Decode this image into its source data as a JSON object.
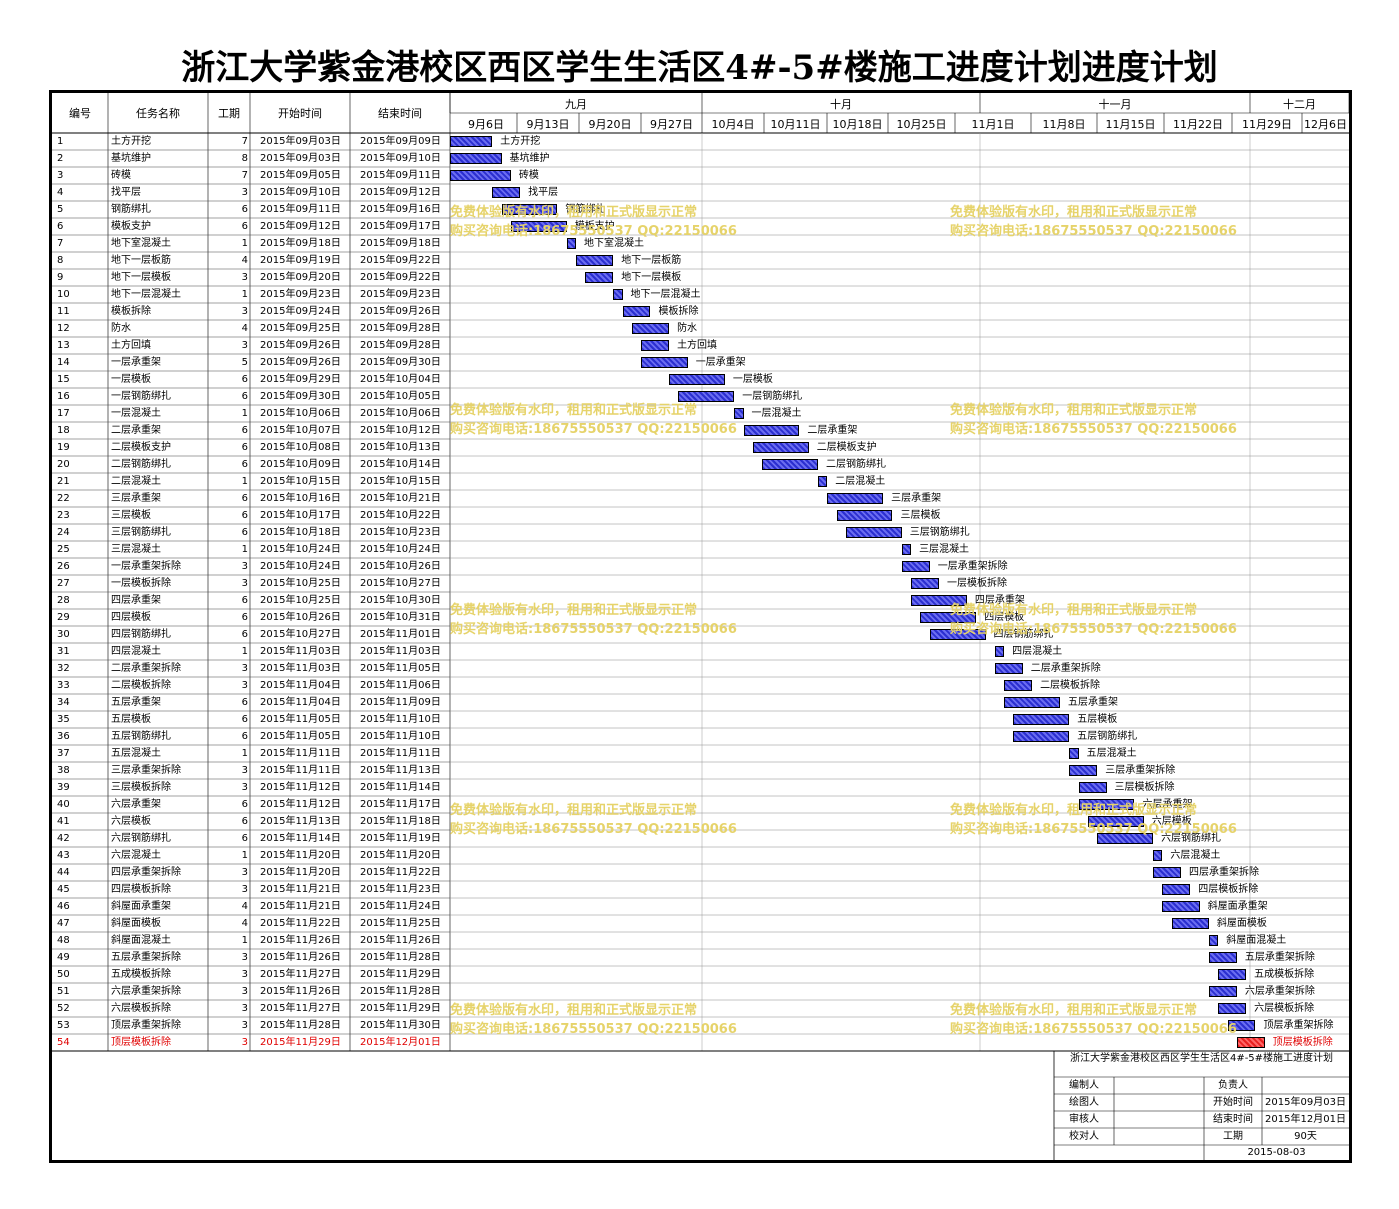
{
  "title": "浙江大学紫金港校区西区学生生活区4#-5#楼施工进度计划进度计划",
  "columns": {
    "id": "编号",
    "name": "任务名称",
    "dur": "工期",
    "start": "开始时间",
    "end": "结束时间"
  },
  "months": [
    "九月",
    "十月",
    "十一月",
    "十二月"
  ],
  "weeks": [
    "9月6日",
    "9月13日",
    "9月20日",
    "9月27日",
    "10月4日",
    "10月11日",
    "10月18日",
    "10月25日",
    "11月1日",
    "11月8日",
    "11月15日",
    "11月22日",
    "11月29日",
    "12月6日"
  ],
  "timeline": {
    "start": "2015-08-30",
    "end": "2015-12-12"
  },
  "tasks": [
    {
      "id": "1",
      "name": "土方开挖",
      "dur": "7",
      "start": "2015年09月03日",
      "end": "2015年09月09日",
      "s": "2015-09-03",
      "e": "2015-09-09"
    },
    {
      "id": "2",
      "name": "基坑维护",
      "dur": "8",
      "start": "2015年09月03日",
      "end": "2015年09月10日",
      "s": "2015-09-03",
      "e": "2015-09-10"
    },
    {
      "id": "3",
      "name": "砖模",
      "dur": "7",
      "start": "2015年09月05日",
      "end": "2015年09月11日",
      "s": "2015-09-05",
      "e": "2015-09-11"
    },
    {
      "id": "4",
      "name": "找平层",
      "dur": "3",
      "start": "2015年09月10日",
      "end": "2015年09月12日",
      "s": "2015-09-10",
      "e": "2015-09-12"
    },
    {
      "id": "5",
      "name": "钢筋绑扎",
      "dur": "6",
      "start": "2015年09月11日",
      "end": "2015年09月16日",
      "s": "2015-09-11",
      "e": "2015-09-16"
    },
    {
      "id": "6",
      "name": "模板支护",
      "dur": "6",
      "start": "2015年09月12日",
      "end": "2015年09月17日",
      "s": "2015-09-12",
      "e": "2015-09-17"
    },
    {
      "id": "7",
      "name": "地下室混凝土",
      "dur": "1",
      "start": "2015年09月18日",
      "end": "2015年09月18日",
      "s": "2015-09-18",
      "e": "2015-09-18"
    },
    {
      "id": "8",
      "name": "地下一层板筋",
      "dur": "4",
      "start": "2015年09月19日",
      "end": "2015年09月22日",
      "s": "2015-09-19",
      "e": "2015-09-22"
    },
    {
      "id": "9",
      "name": "地下一层模板",
      "dur": "3",
      "start": "2015年09月20日",
      "end": "2015年09月22日",
      "s": "2015-09-20",
      "e": "2015-09-22"
    },
    {
      "id": "10",
      "name": "地下一层混凝土",
      "dur": "1",
      "start": "2015年09月23日",
      "end": "2015年09月23日",
      "s": "2015-09-23",
      "e": "2015-09-23"
    },
    {
      "id": "11",
      "name": "模板拆除",
      "dur": "3",
      "start": "2015年09月24日",
      "end": "2015年09月26日",
      "s": "2015-09-24",
      "e": "2015-09-26"
    },
    {
      "id": "12",
      "name": "防水",
      "dur": "4",
      "start": "2015年09月25日",
      "end": "2015年09月28日",
      "s": "2015-09-25",
      "e": "2015-09-28"
    },
    {
      "id": "13",
      "name": "土方回填",
      "dur": "3",
      "start": "2015年09月26日",
      "end": "2015年09月28日",
      "s": "2015-09-26",
      "e": "2015-09-28"
    },
    {
      "id": "14",
      "name": "一层承重架",
      "dur": "5",
      "start": "2015年09月26日",
      "end": "2015年09月30日",
      "s": "2015-09-26",
      "e": "2015-09-30"
    },
    {
      "id": "15",
      "name": "一层模板",
      "dur": "6",
      "start": "2015年09月29日",
      "end": "2015年10月04日",
      "s": "2015-09-29",
      "e": "2015-10-04"
    },
    {
      "id": "16",
      "name": "一层钢筋绑扎",
      "dur": "6",
      "start": "2015年09月30日",
      "end": "2015年10月05日",
      "s": "2015-09-30",
      "e": "2015-10-05"
    },
    {
      "id": "17",
      "name": "一层混凝土",
      "dur": "1",
      "start": "2015年10月06日",
      "end": "2015年10月06日",
      "s": "2015-10-06",
      "e": "2015-10-06"
    },
    {
      "id": "18",
      "name": "二层承重架",
      "dur": "6",
      "start": "2015年10月07日",
      "end": "2015年10月12日",
      "s": "2015-10-07",
      "e": "2015-10-12"
    },
    {
      "id": "19",
      "name": "二层模板支护",
      "dur": "6",
      "start": "2015年10月08日",
      "end": "2015年10月13日",
      "s": "2015-10-08",
      "e": "2015-10-13"
    },
    {
      "id": "20",
      "name": "二层钢筋绑扎",
      "dur": "6",
      "start": "2015年10月09日",
      "end": "2015年10月14日",
      "s": "2015-10-09",
      "e": "2015-10-14"
    },
    {
      "id": "21",
      "name": "二层混凝土",
      "dur": "1",
      "start": "2015年10月15日",
      "end": "2015年10月15日",
      "s": "2015-10-15",
      "e": "2015-10-15"
    },
    {
      "id": "22",
      "name": "三层承重架",
      "dur": "6",
      "start": "2015年10月16日",
      "end": "2015年10月21日",
      "s": "2015-10-16",
      "e": "2015-10-21"
    },
    {
      "id": "23",
      "name": "三层模板",
      "dur": "6",
      "start": "2015年10月17日",
      "end": "2015年10月22日",
      "s": "2015-10-17",
      "e": "2015-10-22"
    },
    {
      "id": "24",
      "name": "三层钢筋绑扎",
      "dur": "6",
      "start": "2015年10月18日",
      "end": "2015年10月23日",
      "s": "2015-10-18",
      "e": "2015-10-23"
    },
    {
      "id": "25",
      "name": "三层混凝土",
      "dur": "1",
      "start": "2015年10月24日",
      "end": "2015年10月24日",
      "s": "2015-10-24",
      "e": "2015-10-24"
    },
    {
      "id": "26",
      "name": "一层承重架拆除",
      "dur": "3",
      "start": "2015年10月24日",
      "end": "2015年10月26日",
      "s": "2015-10-24",
      "e": "2015-10-26"
    },
    {
      "id": "27",
      "name": "一层模板拆除",
      "dur": "3",
      "start": "2015年10月25日",
      "end": "2015年10月27日",
      "s": "2015-10-25",
      "e": "2015-10-27"
    },
    {
      "id": "28",
      "name": "四层承重架",
      "dur": "6",
      "start": "2015年10月25日",
      "end": "2015年10月30日",
      "s": "2015-10-25",
      "e": "2015-10-30"
    },
    {
      "id": "29",
      "name": "四层模板",
      "dur": "6",
      "start": "2015年10月26日",
      "end": "2015年10月31日",
      "s": "2015-10-26",
      "e": "2015-10-31"
    },
    {
      "id": "30",
      "name": "四层钢筋绑扎",
      "dur": "6",
      "start": "2015年10月27日",
      "end": "2015年11月01日",
      "s": "2015-10-27",
      "e": "2015-11-01"
    },
    {
      "id": "31",
      "name": "四层混凝土",
      "dur": "1",
      "start": "2015年11月03日",
      "end": "2015年11月03日",
      "s": "2015-11-03",
      "e": "2015-11-03"
    },
    {
      "id": "32",
      "name": "二层承重架拆除",
      "dur": "3",
      "start": "2015年11月03日",
      "end": "2015年11月05日",
      "s": "2015-11-03",
      "e": "2015-11-05"
    },
    {
      "id": "33",
      "name": "二层模板拆除",
      "dur": "3",
      "start": "2015年11月04日",
      "end": "2015年11月06日",
      "s": "2015-11-04",
      "e": "2015-11-06"
    },
    {
      "id": "34",
      "name": "五层承重架",
      "dur": "6",
      "start": "2015年11月04日",
      "end": "2015年11月09日",
      "s": "2015-11-04",
      "e": "2015-11-09"
    },
    {
      "id": "35",
      "name": "五层模板",
      "dur": "6",
      "start": "2015年11月05日",
      "end": "2015年11月10日",
      "s": "2015-11-05",
      "e": "2015-11-10"
    },
    {
      "id": "36",
      "name": "五层钢筋绑扎",
      "dur": "6",
      "start": "2015年11月05日",
      "end": "2015年11月10日",
      "s": "2015-11-05",
      "e": "2015-11-10"
    },
    {
      "id": "37",
      "name": "五层混凝土",
      "dur": "1",
      "start": "2015年11月11日",
      "end": "2015年11月11日",
      "s": "2015-11-11",
      "e": "2015-11-11"
    },
    {
      "id": "38",
      "name": "三层承重架拆除",
      "dur": "3",
      "start": "2015年11月11日",
      "end": "2015年11月13日",
      "s": "2015-11-11",
      "e": "2015-11-13"
    },
    {
      "id": "39",
      "name": "三层模板拆除",
      "dur": "3",
      "start": "2015年11月12日",
      "end": "2015年11月14日",
      "s": "2015-11-12",
      "e": "2015-11-14"
    },
    {
      "id": "40",
      "name": "六层承重架",
      "dur": "6",
      "start": "2015年11月12日",
      "end": "2015年11月17日",
      "s": "2015-11-12",
      "e": "2015-11-17"
    },
    {
      "id": "41",
      "name": "六层模板",
      "dur": "6",
      "start": "2015年11月13日",
      "end": "2015年11月18日",
      "s": "2015-11-13",
      "e": "2015-11-18"
    },
    {
      "id": "42",
      "name": "六层钢筋绑扎",
      "dur": "6",
      "start": "2015年11月14日",
      "end": "2015年11月19日",
      "s": "2015-11-14",
      "e": "2015-11-19"
    },
    {
      "id": "43",
      "name": "六层混凝土",
      "dur": "1",
      "start": "2015年11月20日",
      "end": "2015年11月20日",
      "s": "2015-11-20",
      "e": "2015-11-20"
    },
    {
      "id": "44",
      "name": "四层承重架拆除",
      "dur": "3",
      "start": "2015年11月20日",
      "end": "2015年11月22日",
      "s": "2015-11-20",
      "e": "2015-11-22"
    },
    {
      "id": "45",
      "name": "四层模板拆除",
      "dur": "3",
      "start": "2015年11月21日",
      "end": "2015年11月23日",
      "s": "2015-11-21",
      "e": "2015-11-23"
    },
    {
      "id": "46",
      "name": "斜屋面承重架",
      "dur": "4",
      "start": "2015年11月21日",
      "end": "2015年11月24日",
      "s": "2015-11-21",
      "e": "2015-11-24"
    },
    {
      "id": "47",
      "name": "斜屋面模板",
      "dur": "4",
      "start": "2015年11月22日",
      "end": "2015年11月25日",
      "s": "2015-11-22",
      "e": "2015-11-25"
    },
    {
      "id": "48",
      "name": "斜屋面混凝土",
      "dur": "1",
      "start": "2015年11月26日",
      "end": "2015年11月26日",
      "s": "2015-11-26",
      "e": "2015-11-26"
    },
    {
      "id": "49",
      "name": "五层承重架拆除",
      "dur": "3",
      "start": "2015年11月26日",
      "end": "2015年11月28日",
      "s": "2015-11-26",
      "e": "2015-11-28"
    },
    {
      "id": "50",
      "name": "五成模板拆除",
      "dur": "3",
      "start": "2015年11月27日",
      "end": "2015年11月29日",
      "s": "2015-11-27",
      "e": "2015-11-29"
    },
    {
      "id": "51",
      "name": "六层承重架拆除",
      "dur": "3",
      "start": "2015年11月26日",
      "end": "2015年11月28日",
      "s": "2015-11-26",
      "e": "2015-11-28"
    },
    {
      "id": "52",
      "name": "六层模板拆除",
      "dur": "3",
      "start": "2015年11月27日",
      "end": "2015年11月29日",
      "s": "2015-11-27",
      "e": "2015-11-29"
    },
    {
      "id": "53",
      "name": "顶层承重架拆除",
      "dur": "3",
      "start": "2015年11月28日",
      "end": "2015年11月30日",
      "s": "2015-11-28",
      "e": "2015-11-30"
    },
    {
      "id": "54",
      "name": "顶层模板拆除",
      "dur": "3",
      "start": "2015年11月29日",
      "end": "2015年12月01日",
      "s": "2015-11-29",
      "e": "2015-12-01",
      "critical": true
    }
  ],
  "watermark": {
    "line1": "免费体验版有水印，租用和正式版显示正常",
    "line2": "购买咨询电话:18675550537 QQ:22150066"
  },
  "titleblock": {
    "project": "浙江大学紫金港校区西区学生生活区4#-5#楼施工进度计划",
    "editor_label": "编制人",
    "owner_label": "负责人",
    "drawer_label": "绘图人",
    "start_label": "开始时间",
    "start_value": "2015年09月03日",
    "reviewer_label": "审核人",
    "end_label": "结束时间",
    "end_value": "2015年12月01日",
    "checker_label": "校对人",
    "duration_label": "工期",
    "duration_value": "90天",
    "date": "2015-08-03"
  },
  "colors": {
    "bar": "#3a3fe0",
    "critical": "#e82020",
    "critical_text": "#e00000",
    "watermark": "#e6d36a"
  }
}
